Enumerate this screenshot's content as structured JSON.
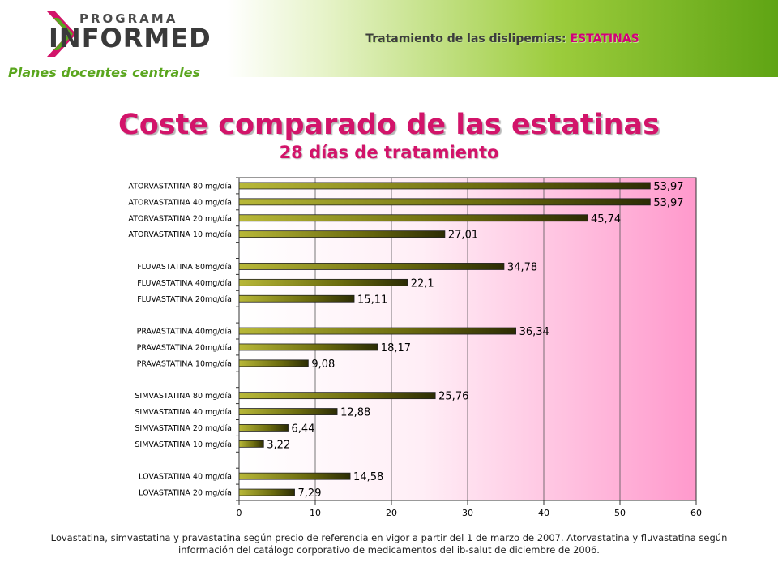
{
  "header": {
    "logo_top": "PROGRAMA",
    "logo_main": "INFORMED",
    "logo_sub": "Planes docentes centrales",
    "banner_prefix": "Tratamiento de las dislipemias:",
    "banner_highlight": "ESTATINAS"
  },
  "colors": {
    "accent": "#d2146a",
    "brand_green": "#5aa61e",
    "bar": "#6b6b0e",
    "plot_gradient_end": "#ff99cc"
  },
  "chart_data": {
    "type": "bar",
    "orientation": "horizontal",
    "title": "Coste comparado de las estatinas",
    "subtitle": "28 días de tratamiento",
    "xlabel": "",
    "ylabel": "",
    "xlim": [
      0,
      60
    ],
    "xticks": [
      0,
      10,
      20,
      30,
      40,
      50,
      60
    ],
    "grid": "vertical",
    "bars": [
      {
        "label": "ATORVASTATINA 80 mg/día",
        "value": 53.97,
        "value_label": "53,97"
      },
      {
        "label": "ATORVASTATINA 40 mg/día",
        "value": 53.97,
        "value_label": "53,97"
      },
      {
        "label": "ATORVASTATINA 20 mg/día",
        "value": 45.74,
        "value_label": "45,74"
      },
      {
        "label": "ATORVASTATINA 10 mg/día",
        "value": 27.01,
        "value_label": "27,01"
      },
      {
        "label": "",
        "value": null,
        "value_label": ""
      },
      {
        "label": "FLUVASTATINA 80mg/día",
        "value": 34.78,
        "value_label": "34,78"
      },
      {
        "label": "FLUVASTATINA 40mg/día",
        "value": 22.1,
        "value_label": "22,1"
      },
      {
        "label": "FLUVASTATINA 20mg/día",
        "value": 15.11,
        "value_label": "15,11"
      },
      {
        "label": "",
        "value": null,
        "value_label": ""
      },
      {
        "label": "PRAVASTATINA 40mg/día",
        "value": 36.34,
        "value_label": "36,34"
      },
      {
        "label": "PRAVASTATINA 20mg/día",
        "value": 18.17,
        "value_label": "18,17"
      },
      {
        "label": "PRAVASTATINA 10mg/día",
        "value": 9.08,
        "value_label": "9,08"
      },
      {
        "label": "",
        "value": null,
        "value_label": ""
      },
      {
        "label": "SIMVASTATINA 80 mg/día",
        "value": 25.76,
        "value_label": "25,76"
      },
      {
        "label": "SIMVASTATINA 40 mg/día",
        "value": 12.88,
        "value_label": "12,88"
      },
      {
        "label": "SIMVASTATINA 20 mg/día",
        "value": 6.44,
        "value_label": "6,44"
      },
      {
        "label": "SIMVASTATINA 10 mg/día",
        "value": 3.22,
        "value_label": "3,22"
      },
      {
        "label": "",
        "value": null,
        "value_label": ""
      },
      {
        "label": "LOVASTATINA 40 mg/día",
        "value": 14.58,
        "value_label": "14,58"
      },
      {
        "label": "LOVASTATINA 20 mg/día",
        "value": 7.29,
        "value_label": "7,29"
      }
    ]
  },
  "footnote": "Lovastatina, simvastatina y pravastatina según precio de referencia en vigor a partir del 1 de marzo de 2007. Atorvastatina y fluvastatina según información del catálogo corporativo de medicamentos del ib-salut de diciembre de 2006."
}
